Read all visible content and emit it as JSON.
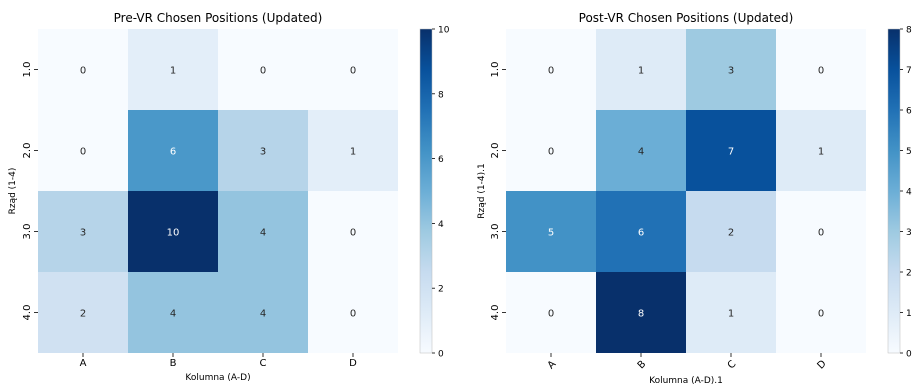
{
  "chart_data": [
    {
      "type": "heatmap",
      "title": "Pre-VR Chosen Positions (Updated)",
      "xlabel": "Kolumna (A-D)",
      "ylabel": "Rząd (1-4)",
      "columns": [
        "A",
        "B",
        "C",
        "D"
      ],
      "rows": [
        "1.0",
        "2.0",
        "3.0",
        "4.0"
      ],
      "values": [
        [
          0,
          1,
          0,
          0
        ],
        [
          0,
          6,
          3,
          1
        ],
        [
          3,
          10,
          4,
          0
        ],
        [
          2,
          4,
          4,
          0
        ]
      ],
      "colorbar": {
        "min": 0,
        "max": 10,
        "ticks": [
          "0",
          "2",
          "4",
          "6",
          "8",
          "10"
        ]
      },
      "colormap": "Blues",
      "x_tick_rotation": 0
    },
    {
      "type": "heatmap",
      "title": "Post-VR Chosen Positions (Updated)",
      "xlabel": "Kolumna (A-D).1",
      "ylabel": "Rząd (1-4).1",
      "columns": [
        "A",
        "B",
        "C",
        "D"
      ],
      "rows": [
        "1.0",
        "2.0",
        "3.0",
        "4.0"
      ],
      "values": [
        [
          0,
          1,
          3,
          0
        ],
        [
          0,
          4,
          7,
          1
        ],
        [
          5,
          6,
          2,
          0
        ],
        [
          0,
          8,
          1,
          0
        ]
      ],
      "colorbar": {
        "min": 0,
        "max": 8,
        "ticks": [
          "0",
          "1",
          "2",
          "3",
          "4",
          "5",
          "6",
          "7",
          "8"
        ]
      },
      "colormap": "Blues",
      "x_tick_rotation": -45
    }
  ]
}
